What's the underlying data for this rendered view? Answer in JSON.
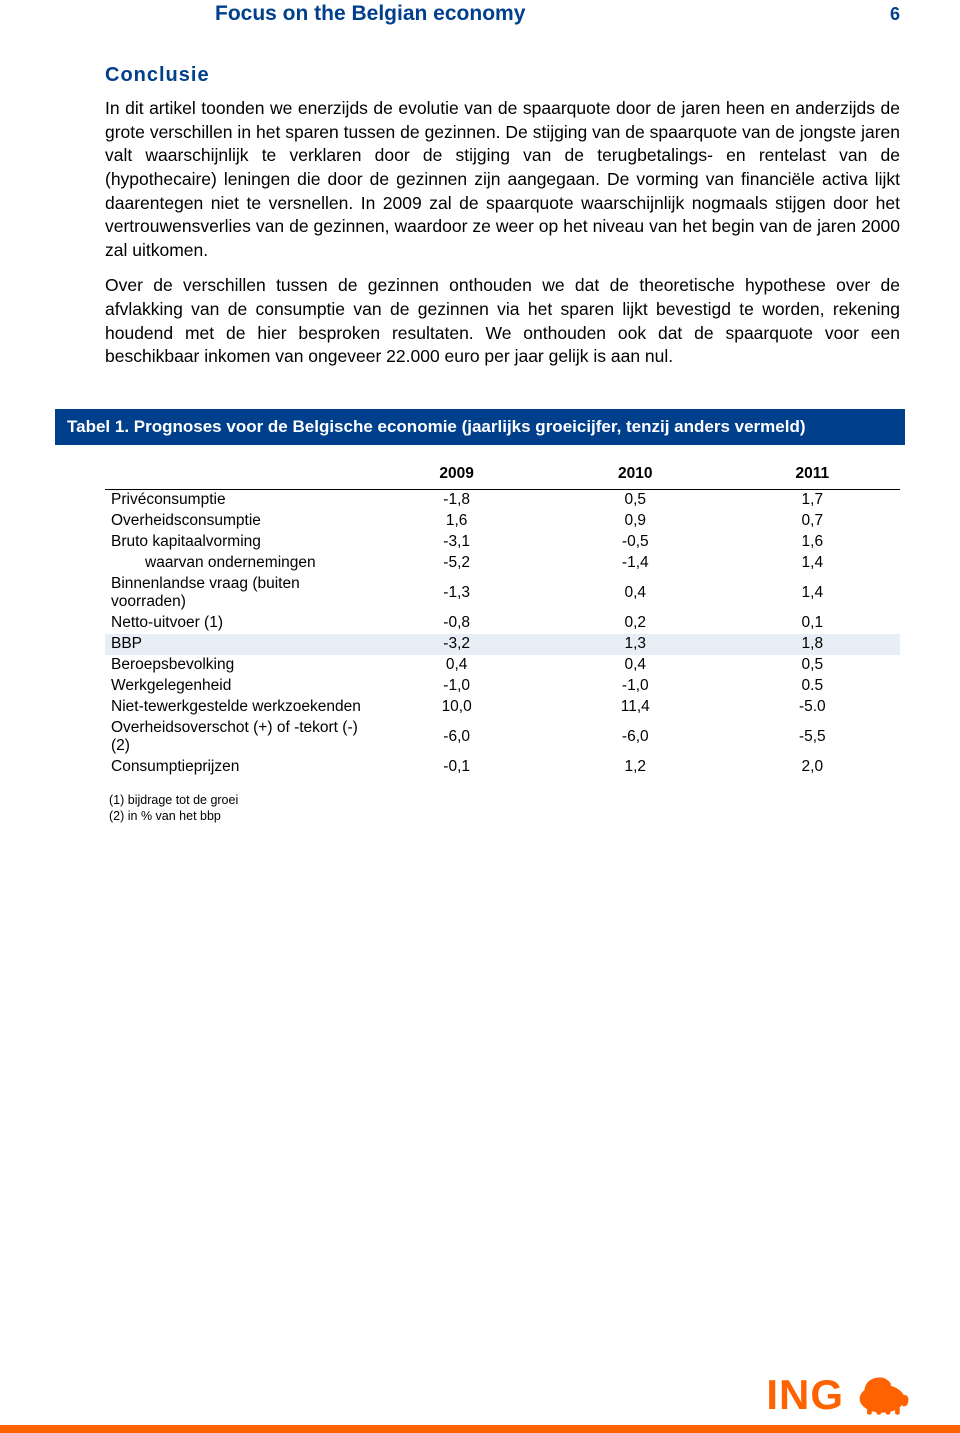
{
  "header": {
    "title": "Focus on the Belgian economy",
    "page_number": "6"
  },
  "section": {
    "heading": "Conclusie",
    "paragraphs": [
      "In dit artikel toonden we enerzijds de evolutie van de spaarquote door de jaren heen en anderzijds de grote verschillen in het sparen tussen de gezinnen. De stijging van de spaarquote van de jongste jaren valt waarschijnlijk te verklaren door de stijging van de terugbetalings- en rentelast van de (hypothecaire) leningen die door de gezinnen zijn aangegaan. De vorming van financiële activa lijkt daarentegen niet te versnellen. In 2009 zal de spaarquote waarschijnlijk nogmaals stijgen door het vertrouwensverlies van de gezinnen, waardoor ze weer op het niveau van het begin van de jaren 2000 zal uitkomen.",
      "Over de verschillen tussen de gezinnen onthouden we dat de theoretische hypothese over de afvlakking van de consumptie van de gezinnen via het sparen lijkt bevestigd te worden, rekening houdend met de hier besproken resultaten. We onthouden ook dat de spaarquote voor een beschikbaar inkomen van ongeveer 22.000 euro per jaar gelijk is aan nul."
    ]
  },
  "table": {
    "title_prefix": "Tabel 1.",
    "title": "Prognoses voor de Belgische economie (jaarlijks groeicijfer, tenzij anders vermeld)",
    "columns": [
      "",
      "2009",
      "2010",
      "2011"
    ],
    "rows": [
      {
        "label": "Privéconsumptie",
        "v": [
          "-1,8",
          "0,5",
          "1,7"
        ],
        "sep": true
      },
      {
        "label": "Overheidsconsumptie",
        "v": [
          "1,6",
          "0,9",
          "0,7"
        ]
      },
      {
        "label": "Bruto kapitaalvorming",
        "v": [
          "-3,1",
          "-0,5",
          "1,6"
        ]
      },
      {
        "label": "waarvan ondernemingen",
        "v": [
          "-5,2",
          "-1,4",
          "1,4"
        ],
        "indent": true
      },
      {
        "label": "Binnenlandse vraag (buiten voorraden)",
        "v": [
          "-1,3",
          "0,4",
          "1,4"
        ]
      },
      {
        "label": "Netto-uitvoer (1)",
        "v": [
          "-0,8",
          "0,2",
          "0,1"
        ]
      },
      {
        "label": "BBP",
        "v": [
          "-3,2",
          "1,3",
          "1,8"
        ],
        "shaded": true
      },
      {
        "label": "Beroepsbevolking",
        "v": [
          "0,4",
          "0,4",
          "0,5"
        ]
      },
      {
        "label": "Werkgelegenheid",
        "v": [
          "-1,0",
          "-1,0",
          "0.5"
        ]
      },
      {
        "label": "Niet-tewerkgestelde werkzoekenden",
        "v": [
          "10,0",
          "11,4",
          "-5.0"
        ]
      },
      {
        "label": "Overheidsoverschot (+) of -tekort (-) (2)",
        "v": [
          "-6,0",
          "-6,0",
          "-5,5"
        ]
      },
      {
        "label": "Consumptieprijzen",
        "v": [
          "-0,1",
          "1,2",
          "2,0"
        ]
      }
    ],
    "footnotes": [
      "(1) bijdrage tot de groei",
      "(2) in % van het bbp"
    ]
  },
  "brand": {
    "name": "ING",
    "accent_color": "#ff6200",
    "primary_color": "#003f8c"
  }
}
